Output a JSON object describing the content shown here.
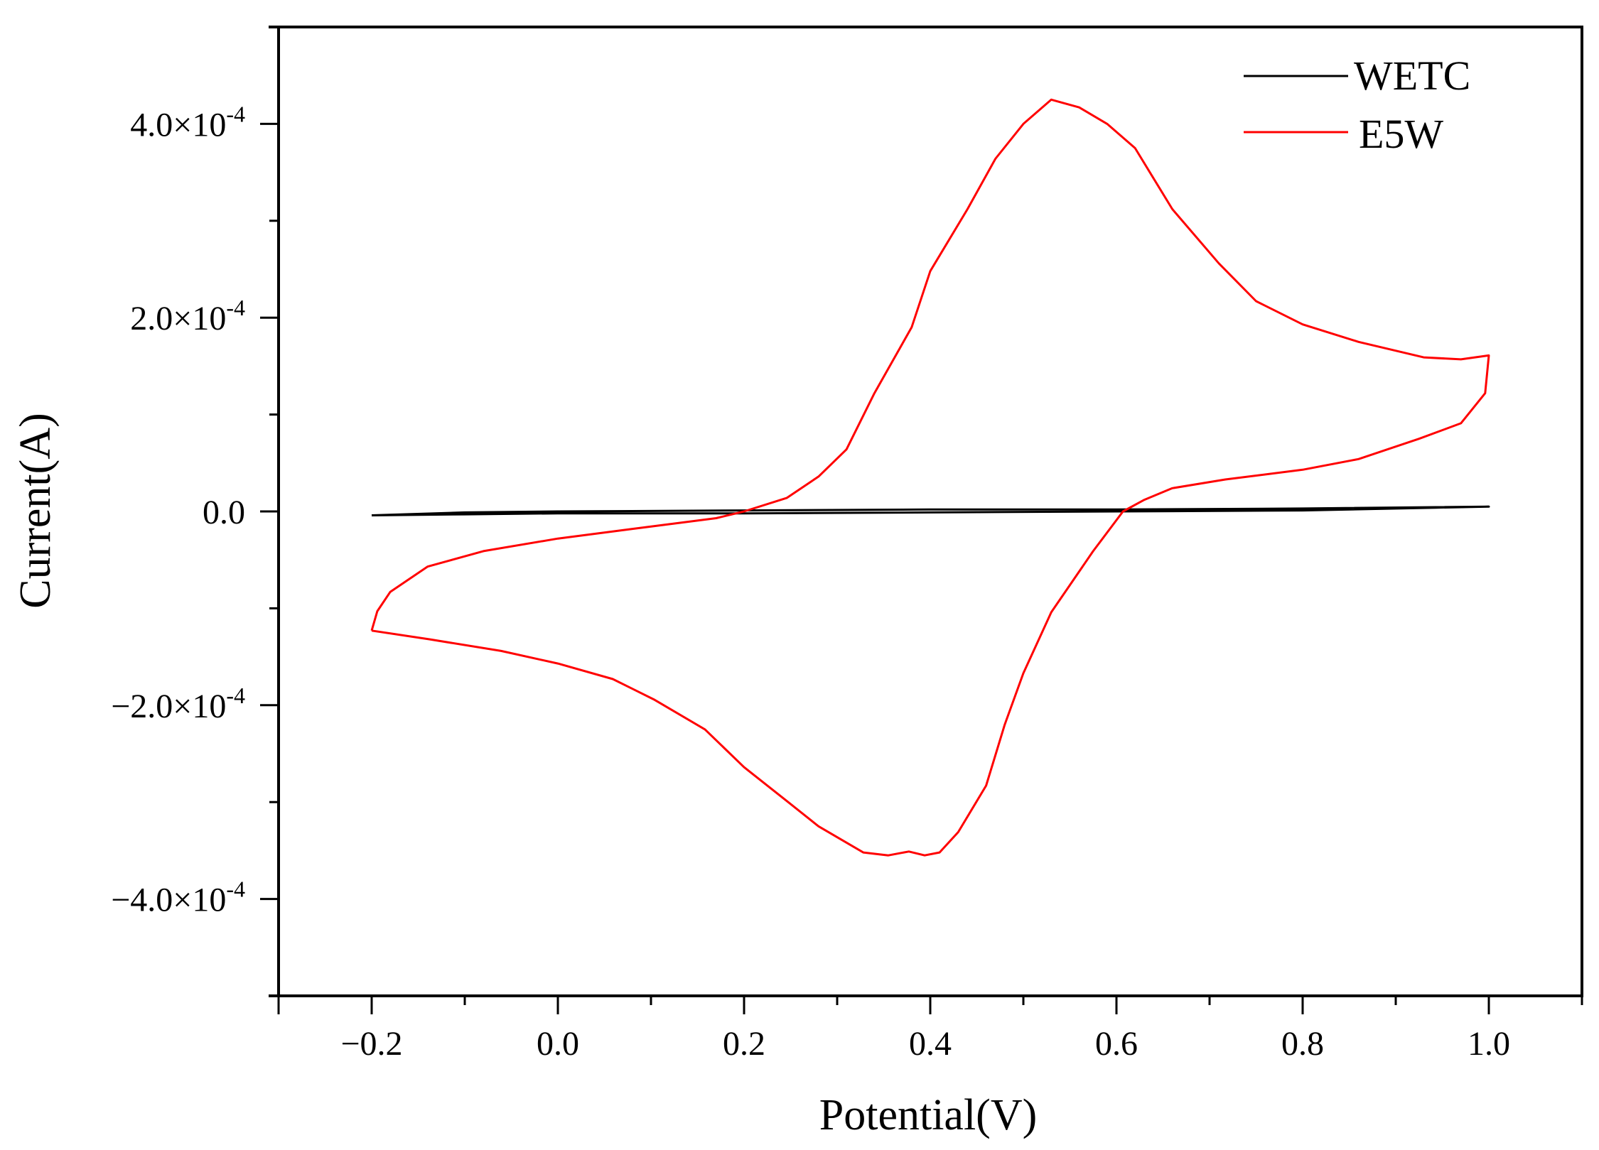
{
  "chart_data": {
    "type": "line",
    "title": "",
    "xlabel": "Potential(V)",
    "ylabel": "Current(A)",
    "xlim": [
      -0.3,
      1.1
    ],
    "ylim": [
      -0.0005,
      0.0005
    ],
    "grid": false,
    "legend_position": "top-right",
    "x_ticks": [
      {
        "value": -0.2,
        "label": "−0.2"
      },
      {
        "value": 0.0,
        "label": "0.0"
      },
      {
        "value": 0.2,
        "label": "0.2"
      },
      {
        "value": 0.4,
        "label": "0.4"
      },
      {
        "value": 0.6,
        "label": "0.6"
      },
      {
        "value": 0.8,
        "label": "0.8"
      },
      {
        "value": 1.0,
        "label": "1.0"
      }
    ],
    "y_ticks": [
      {
        "value": 0.0004,
        "mantissa": "4.0×10",
        "exponent": "-4"
      },
      {
        "value": 0.0002,
        "mantissa": "2.0×10",
        "exponent": "-4"
      },
      {
        "value": 0.0,
        "mantissa": "0.0",
        "exponent": ""
      },
      {
        "value": -0.0002,
        "mantissa": "−2.0×10",
        "exponent": "-4"
      },
      {
        "value": -0.0004,
        "mantissa": "−4.0×10",
        "exponent": "-4"
      }
    ],
    "series": [
      {
        "name": "WETC",
        "color": "#000000",
        "x": [
          -0.2,
          -0.1,
          0.0,
          0.2,
          0.4,
          0.6,
          0.8,
          1.0,
          0.8,
          0.6,
          0.4,
          0.2,
          0.0,
          -0.1,
          -0.2
        ],
        "y": [
          -4e-06,
          -1e-06,
          0.0,
          1e-06,
          2e-06,
          2e-06,
          3e-06,
          5e-06,
          1e-06,
          0.0,
          -1e-06,
          -2e-06,
          -2e-06,
          -3e-06,
          -4e-06
        ]
      },
      {
        "name": "E5W",
        "color": "#ff0000",
        "x": [
          -0.2,
          -0.194,
          -0.18,
          -0.14,
          -0.08,
          0.0,
          0.08,
          0.17,
          0.2,
          0.246,
          0.28,
          0.31,
          0.34,
          0.38,
          0.4,
          0.44,
          0.47,
          0.5,
          0.53,
          0.56,
          0.59,
          0.62,
          0.66,
          0.71,
          0.75,
          0.8,
          0.86,
          0.93,
          0.97,
          1.0,
          0.996,
          0.97,
          0.925,
          0.86,
          0.8,
          0.717,
          0.66,
          0.63,
          0.607,
          0.575,
          0.53,
          0.5,
          0.48,
          0.46,
          0.43,
          0.41,
          0.394,
          0.377,
          0.355,
          0.328,
          0.28,
          0.246,
          0.2,
          0.158,
          0.103,
          0.059,
          0.0,
          -0.061,
          -0.138,
          -0.2
        ],
        "y": [
          -0.000123,
          -0.000103,
          -8.3e-05,
          -5.7e-05,
          -4.1e-05,
          -2.8e-05,
          -1.8e-05,
          -7e-06,
          0.0,
          1.4e-05,
          3.6e-05,
          6.4e-05,
          0.000122,
          0.00019,
          0.000248,
          0.000312,
          0.000364,
          0.0004,
          0.000425,
          0.000417,
          0.0004,
          0.000375,
          0.000312,
          0.000256,
          0.000217,
          0.000193,
          0.000175,
          0.000159,
          0.000157,
          0.000161,
          0.000122,
          9.1e-05,
          7.5e-05,
          5.4e-05,
          4.3e-05,
          3.3e-05,
          2.4e-05,
          1.2e-05,
          0.0,
          -4.1e-05,
          -0.000104,
          -0.000167,
          -0.00022,
          -0.000283,
          -0.000331,
          -0.000352,
          -0.000355,
          -0.000351,
          -0.000355,
          -0.000352,
          -0.000325,
          -0.000299,
          -0.000264,
          -0.000225,
          -0.000194,
          -0.000173,
          -0.000157,
          -0.000144,
          -0.000132,
          -0.000123
        ]
      }
    ]
  }
}
